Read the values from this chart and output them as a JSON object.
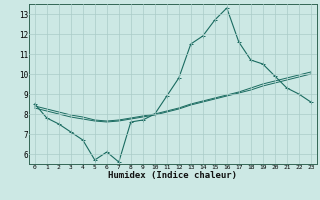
{
  "xlabel": "Humidex (Indice chaleur)",
  "bg_color": "#cce8e4",
  "grid_color": "#aaccc8",
  "line_color": "#1a6b60",
  "xlim": [
    -0.5,
    23.5
  ],
  "ylim": [
    5.5,
    13.5
  ],
  "xticks": [
    0,
    1,
    2,
    3,
    4,
    5,
    6,
    7,
    8,
    9,
    10,
    11,
    12,
    13,
    14,
    15,
    16,
    17,
    18,
    19,
    20,
    21,
    22,
    23
  ],
  "yticks": [
    6,
    7,
    8,
    9,
    10,
    11,
    12,
    13
  ],
  "line1_x": [
    0,
    1,
    2,
    3,
    4,
    5,
    6,
    7,
    8,
    9,
    10,
    11,
    12,
    13,
    14,
    15,
    16,
    17,
    18,
    19,
    20,
    21,
    22,
    23
  ],
  "line1_y": [
    8.5,
    7.8,
    7.5,
    7.1,
    6.7,
    5.7,
    6.1,
    5.6,
    7.6,
    7.7,
    8.0,
    8.9,
    9.8,
    11.5,
    11.9,
    12.7,
    13.3,
    11.6,
    10.7,
    10.5,
    9.9,
    9.3,
    9.0,
    8.6
  ],
  "line2_x": [
    0,
    1,
    2,
    3,
    4,
    5,
    6,
    7,
    8,
    9,
    10,
    11,
    12,
    13,
    14,
    15,
    16,
    17,
    18,
    19,
    20,
    21,
    22,
    23
  ],
  "line2_y": [
    8.3,
    8.15,
    8.0,
    7.85,
    7.75,
    7.65,
    7.6,
    7.65,
    7.75,
    7.85,
    7.95,
    8.1,
    8.25,
    8.45,
    8.6,
    8.75,
    8.9,
    9.05,
    9.2,
    9.4,
    9.55,
    9.7,
    9.85,
    10.0
  ],
  "line3_x": [
    0,
    1,
    2,
    3,
    4,
    5,
    6,
    7,
    8,
    9,
    10,
    11,
    12,
    13,
    14,
    15,
    16,
    17,
    18,
    19,
    20,
    21,
    22,
    23
  ],
  "line3_y": [
    8.4,
    8.25,
    8.1,
    7.95,
    7.85,
    7.7,
    7.65,
    7.7,
    7.8,
    7.9,
    8.0,
    8.15,
    8.3,
    8.5,
    8.65,
    8.8,
    8.95,
    9.1,
    9.3,
    9.5,
    9.65,
    9.8,
    9.95,
    10.1
  ]
}
